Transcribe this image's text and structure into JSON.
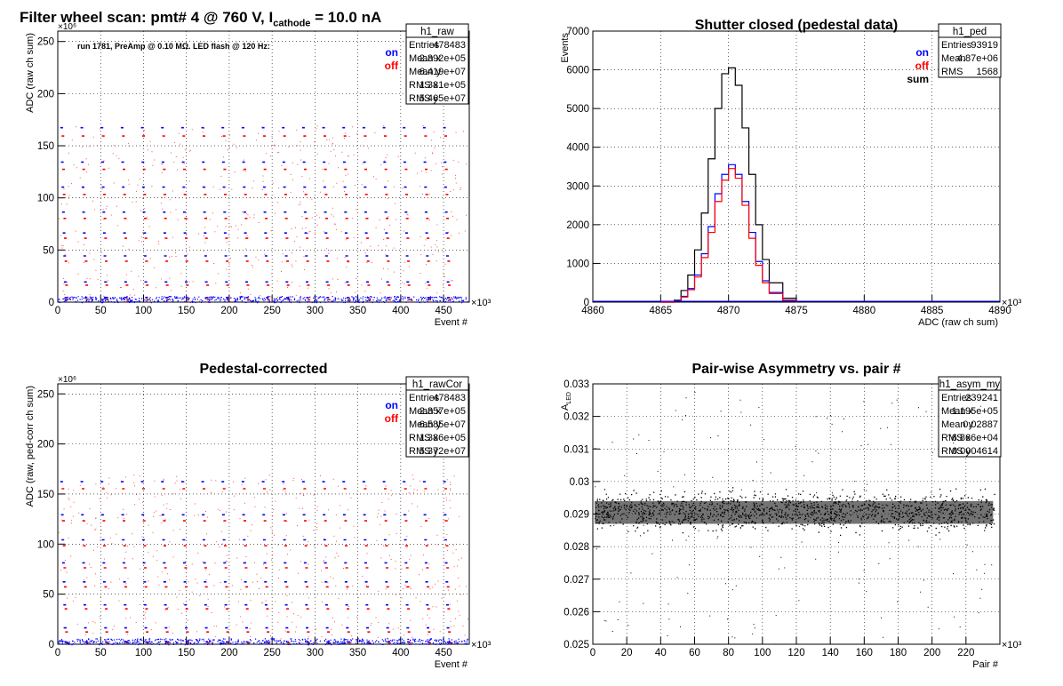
{
  "page_title": "Filter wheel scan: pmt#   4 @   760 V, I",
  "page_title_sub": "cathode",
  "page_title_tail": " = 10.0 nA",
  "colors": {
    "on": "#0000ff",
    "off": "#ff0000",
    "sum": "#000000",
    "grid": "#000000"
  },
  "chart_data": [
    {
      "id": "raw",
      "type": "scatter",
      "title": "",
      "annotation": "run 1781, PreAmp @ 0.10 MΩ. LED flash @  120 Hz:",
      "xlabel": "Event #",
      "ylabel": "ADC (raw ch sum)",
      "x_exponent": "×10³",
      "y_exponent": "×10⁶",
      "xlim": [
        0,
        480
      ],
      "ylim": [
        0,
        260
      ],
      "xticks": [
        "0",
        "50",
        "100",
        "150",
        "200",
        "250",
        "300",
        "350",
        "400",
        "450"
      ],
      "yticks": [
        "0",
        "50",
        "100",
        "150",
        "200",
        "250"
      ],
      "grid": true,
      "legend": [
        {
          "label": "on",
          "color": "#0000ff"
        },
        {
          "label": "off",
          "color": "#ff0000"
        }
      ],
      "stats": {
        "name": "h1_raw",
        "rows": [
          [
            "Entries",
            "478483"
          ],
          [
            "Mean x",
            "2.392e+05"
          ],
          [
            "Mean y",
            "6.419e+07"
          ],
          [
            "RMS x",
            "1.381e+05"
          ],
          [
            "RMS y",
            "5.465e+07"
          ]
        ]
      },
      "series": [
        {
          "name": "on",
          "levels": [
            168,
            135,
            111,
            87,
            67,
            45,
            20,
            5
          ]
        },
        {
          "name": "off",
          "levels": [
            160,
            128,
            104,
            81,
            62,
            40,
            17,
            3
          ]
        }
      ],
      "step_x": 23.5
    },
    {
      "id": "ped",
      "type": "line",
      "title": "Shutter closed (pedestal data)",
      "xlabel": "ADC (raw ch sum)",
      "ylabel": "Events",
      "x_exponent": "×10³",
      "xlim": [
        4860,
        4890
      ],
      "ylim": [
        0,
        7000
      ],
      "xticks": [
        "4860",
        "4865",
        "4870",
        "4875",
        "4880",
        "4885",
        "4890"
      ],
      "yticks": [
        "0",
        "1000",
        "2000",
        "3000",
        "4000",
        "5000",
        "6000",
        "7000"
      ],
      "grid": true,
      "legend": [
        {
          "label": "on",
          "color": "#0000ff"
        },
        {
          "label": "off",
          "color": "#ff0000"
        },
        {
          "label": "sum",
          "color": "#000000"
        }
      ],
      "stats": {
        "name": "h1_ped",
        "rows": [
          [
            "Entries",
            "93919"
          ],
          [
            "Mean",
            "4.87e+06"
          ],
          [
            "RMS",
            "1568"
          ]
        ]
      },
      "series": [
        {
          "name": "sum",
          "x": [
            4865,
            4866,
            4866.5,
            4867,
            4867.5,
            4868,
            4868.5,
            4869,
            4869.5,
            4870,
            4870.5,
            4871,
            4871.5,
            4872,
            4872.5,
            4873,
            4874,
            4875
          ],
          "y": [
            0,
            50,
            300,
            700,
            1350,
            2300,
            3700,
            5000,
            5900,
            6050,
            5600,
            4500,
            3300,
            2000,
            1100,
            500,
            100,
            0
          ]
        },
        {
          "name": "on",
          "x": [
            4865,
            4866,
            4866.5,
            4867,
            4867.5,
            4868,
            4868.5,
            4869,
            4869.5,
            4870,
            4870.5,
            4871,
            4871.5,
            4872,
            4872.5,
            4873,
            4874,
            4875
          ],
          "y": [
            0,
            30,
            150,
            350,
            700,
            1250,
            1950,
            2800,
            3300,
            3550,
            3300,
            2600,
            1800,
            1050,
            550,
            250,
            50,
            0
          ]
        },
        {
          "name": "off",
          "x": [
            4865,
            4866,
            4866.5,
            4867,
            4867.5,
            4868,
            4868.5,
            4869,
            4869.5,
            4870,
            4870.5,
            4871,
            4871.5,
            4872,
            4872.5,
            4873,
            4874,
            4875
          ],
          "y": [
            0,
            25,
            130,
            320,
            650,
            1150,
            1800,
            2600,
            3150,
            3450,
            3200,
            2500,
            1650,
            950,
            500,
            220,
            40,
            0
          ]
        }
      ]
    },
    {
      "id": "rawCor",
      "type": "scatter",
      "title": "Pedestal-corrected",
      "xlabel": "Event #",
      "ylabel": "ADC (raw, ped-corr ch sum)",
      "x_exponent": "×10³",
      "y_exponent": "×10⁶",
      "xlim": [
        0,
        480
      ],
      "ylim": [
        0,
        260
      ],
      "xticks": [
        "0",
        "50",
        "100",
        "150",
        "200",
        "250",
        "300",
        "350",
        "400",
        "450"
      ],
      "yticks": [
        "0",
        "50",
        "100",
        "150",
        "200",
        "250"
      ],
      "grid": true,
      "legend": [
        {
          "label": "on",
          "color": "#0000ff"
        },
        {
          "label": "off",
          "color": "#ff0000"
        }
      ],
      "stats": {
        "name": "h1_rawCor",
        "rows": [
          [
            "Entries",
            "478483"
          ],
          [
            "Mean x",
            "2.357e+05"
          ],
          [
            "Mean y",
            "6.585e+07"
          ],
          [
            "RMS x",
            "1.386e+05"
          ],
          [
            "RMS y",
            "5.372e+07"
          ]
        ]
      },
      "series": [
        {
          "name": "on",
          "levels": [
            163,
            130,
            105,
            82,
            63,
            40,
            17,
            3
          ]
        },
        {
          "name": "off",
          "levels": [
            156,
            124,
            99,
            77,
            58,
            36,
            13,
            2
          ]
        }
      ],
      "step_x": 23.5
    },
    {
      "id": "asym",
      "type": "scatter",
      "title": "Pair-wise Asymmetry vs. pair #",
      "xlabel": "Pair #",
      "ylabel": "A_LED",
      "x_exponent": "×10³",
      "xlim": [
        0,
        240
      ],
      "ylim": [
        0.025,
        0.033
      ],
      "xticks": [
        "0",
        "20",
        "40",
        "60",
        "80",
        "100",
        "120",
        "140",
        "160",
        "180",
        "200",
        "220"
      ],
      "yticks": [
        "0.025",
        "0.026",
        "0.027",
        "0.028",
        "0.029",
        "0.03",
        "0.031",
        "0.032",
        "0.033"
      ],
      "grid": true,
      "legend": [],
      "stats": {
        "name": "h1_asym_my",
        "rows": [
          [
            "Entries",
            "239241"
          ],
          [
            "Mean x",
            "1.195e+05"
          ],
          [
            "Mean y",
            "0.02887"
          ],
          [
            "RMS x",
            "6.866e+04"
          ],
          [
            "RMS y",
            "0.0004614"
          ]
        ]
      },
      "series": [
        {
          "name": "asym",
          "center": 0.0291,
          "spread": 0.0004
        }
      ]
    }
  ]
}
